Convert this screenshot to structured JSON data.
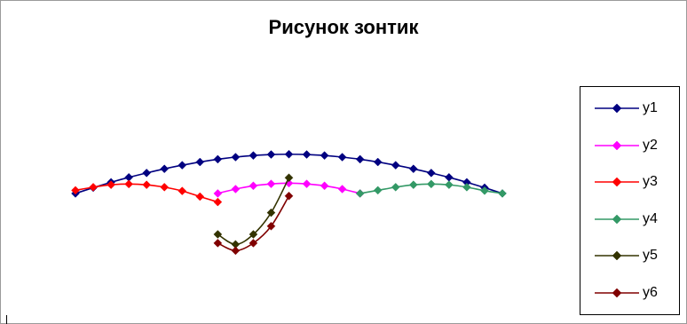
{
  "chart_data": {
    "type": "line",
    "title": "Рисунок зонтик",
    "xlim": [
      -12,
      12
    ],
    "ylim": [
      -7.7,
      5.15
    ],
    "legend_position": "right",
    "grid": false,
    "series": [
      {
        "name": "y1",
        "color": "#000080",
        "points": [
          [
            -12,
            0
          ],
          [
            -11,
            0.46
          ],
          [
            -10,
            0.89
          ],
          [
            -9,
            1.28
          ],
          [
            -8,
            1.63
          ],
          [
            -7,
            1.96
          ],
          [
            -6,
            2.25
          ],
          [
            -5,
            2.5
          ],
          [
            -4,
            2.72
          ],
          [
            -3,
            2.89
          ],
          [
            -2,
            3.02
          ],
          [
            -1,
            3.1
          ],
          [
            0,
            3.12
          ],
          [
            1,
            3.1
          ],
          [
            2,
            3.02
          ],
          [
            3,
            2.89
          ],
          [
            4,
            2.72
          ],
          [
            5,
            2.5
          ],
          [
            6,
            2.25
          ],
          [
            7,
            1.96
          ],
          [
            8,
            1.63
          ],
          [
            9,
            1.28
          ],
          [
            10,
            0.89
          ],
          [
            11,
            0.46
          ],
          [
            12,
            0
          ]
        ]
      },
      {
        "name": "y2",
        "color": "#FF00FF",
        "points": [
          [
            -4,
            0
          ],
          [
            -3,
            0.35
          ],
          [
            -2,
            0.61
          ],
          [
            -1,
            0.76
          ],
          [
            0,
            0.82
          ],
          [
            1,
            0.76
          ],
          [
            2,
            0.61
          ],
          [
            3,
            0.35
          ],
          [
            4,
            0
          ]
        ]
      },
      {
        "name": "y3",
        "color": "#FF0000",
        "points": [
          [
            -12,
            0.25
          ],
          [
            -11,
            0.5
          ],
          [
            -10,
            0.69
          ],
          [
            -9,
            0.75
          ],
          [
            -8,
            0.69
          ],
          [
            -7,
            0.5
          ],
          [
            -6,
            0.2
          ],
          [
            -5,
            -0.25
          ],
          [
            -4,
            -0.68
          ]
        ]
      },
      {
        "name": "y4",
        "color": "#339966",
        "points": [
          [
            4,
            0
          ],
          [
            5,
            0.25
          ],
          [
            6,
            0.5
          ],
          [
            7,
            0.69
          ],
          [
            8,
            0.75
          ],
          [
            9,
            0.69
          ],
          [
            10,
            0.5
          ],
          [
            11,
            0.22
          ],
          [
            12,
            0
          ]
        ]
      },
      {
        "name": "y5",
        "color": "#333300",
        "points": [
          [
            -4,
            -3.25
          ],
          [
            -3,
            -4.05
          ],
          [
            -2,
            -3.25
          ],
          [
            -1,
            -1.53
          ],
          [
            0,
            1.25
          ]
        ]
      },
      {
        "name": "y6",
        "color": "#800000",
        "points": [
          [
            -4,
            -3.95
          ],
          [
            -3,
            -4.55
          ],
          [
            -2,
            -3.95
          ],
          [
            -1,
            -2.6
          ],
          [
            0,
            -0.2
          ]
        ]
      }
    ]
  }
}
